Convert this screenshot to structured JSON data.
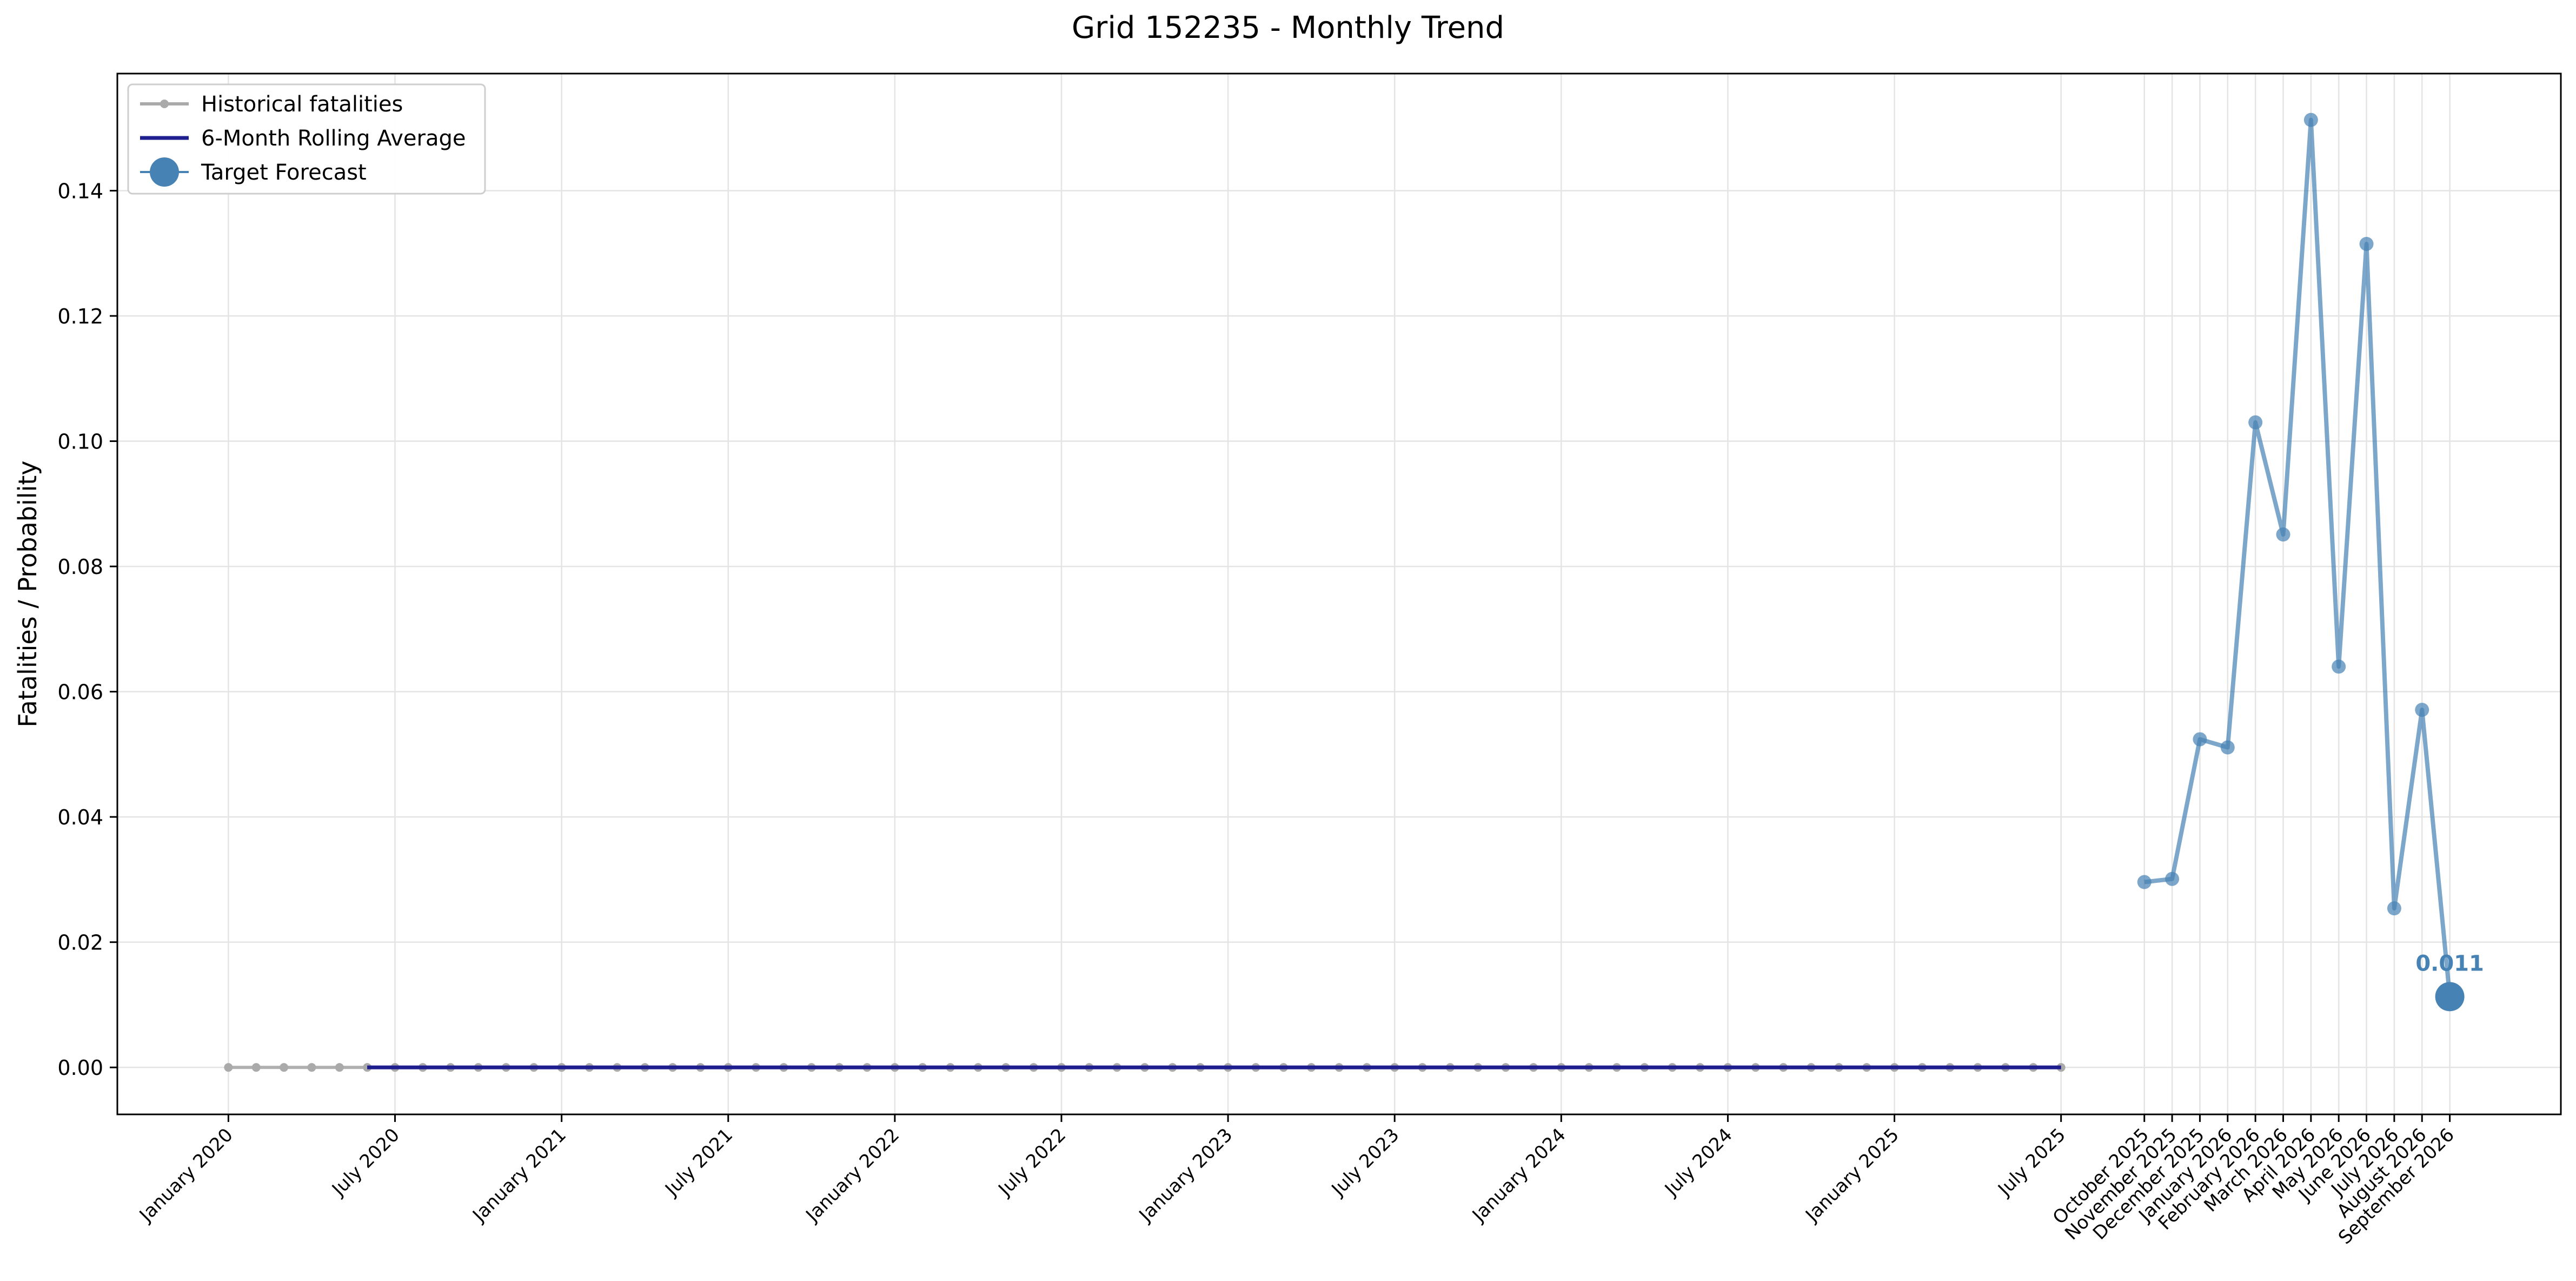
{
  "chart_data": {
    "type": "line",
    "title": "Grid 152235 - Monthly Trend",
    "xlabel": "",
    "ylabel": "Fatalities / Probability",
    "ylim": [
      -0.0075,
      0.1587
    ],
    "yticks": [
      0.0,
      0.02,
      0.04,
      0.06,
      0.08,
      0.1,
      0.12,
      0.14
    ],
    "ytick_labels": [
      "0.00",
      "0.02",
      "0.04",
      "0.06",
      "0.08",
      "0.10",
      "0.12",
      "0.14"
    ],
    "grid": true,
    "legend_position": "top-left",
    "xticks": [
      {
        "date": "2020-01",
        "label": "January 2020"
      },
      {
        "date": "2020-07",
        "label": "July 2020"
      },
      {
        "date": "2021-01",
        "label": "January 2021"
      },
      {
        "date": "2021-07",
        "label": "July 2021"
      },
      {
        "date": "2022-01",
        "label": "January 2022"
      },
      {
        "date": "2022-07",
        "label": "July 2022"
      },
      {
        "date": "2023-01",
        "label": "January 2023"
      },
      {
        "date": "2023-07",
        "label": "July 2023"
      },
      {
        "date": "2024-01",
        "label": "January 2024"
      },
      {
        "date": "2024-07",
        "label": "July 2024"
      },
      {
        "date": "2025-01",
        "label": "January 2025"
      },
      {
        "date": "2025-07",
        "label": "July 2025"
      },
      {
        "date": "2025-10",
        "label": "October 2025"
      },
      {
        "date": "2025-11",
        "label": "November 2025"
      },
      {
        "date": "2025-12",
        "label": "December 2025"
      },
      {
        "date": "2026-01",
        "label": "January 2026"
      },
      {
        "date": "2026-02",
        "label": "February 2026"
      },
      {
        "date": "2026-03",
        "label": "March 2026"
      },
      {
        "date": "2026-04",
        "label": "April 2026"
      },
      {
        "date": "2026-05",
        "label": "May 2026"
      },
      {
        "date": "2026-06",
        "label": "June 2026"
      },
      {
        "date": "2026-07",
        "label": "July 2026"
      },
      {
        "date": "2026-08",
        "label": "August 2026"
      },
      {
        "date": "2026-09",
        "label": "September 2026"
      }
    ],
    "series": [
      {
        "name": "Historical fatalities",
        "color": "#aaaaaa",
        "style": "line-with-small-markers",
        "start": "2020-01",
        "end": "2025-07",
        "constant_value": 0
      },
      {
        "name": "6-Month Rolling Average",
        "color": "#1f1f8f",
        "style": "line",
        "start": "2020-06",
        "end": "2025-07",
        "constant_value": 0
      },
      {
        "name": "",
        "color": "#4682b4",
        "style": "line-with-markers",
        "points": [
          {
            "date": "2025-10",
            "y": 0.0296
          },
          {
            "date": "2025-11",
            "y": 0.0301
          },
          {
            "date": "2025-12",
            "y": 0.0524
          },
          {
            "date": "2026-01",
            "y": 0.0511
          },
          {
            "date": "2026-02",
            "y": 0.103
          },
          {
            "date": "2026-03",
            "y": 0.0851
          },
          {
            "date": "2026-04",
            "y": 0.1513
          },
          {
            "date": "2026-05",
            "y": 0.064
          },
          {
            "date": "2026-06",
            "y": 0.1315
          },
          {
            "date": "2026-07",
            "y": 0.0254
          },
          {
            "date": "2026-08",
            "y": 0.0571
          },
          {
            "date": "2026-09",
            "y": 0.0113
          }
        ]
      },
      {
        "name": "Target Forecast",
        "color": "#4682b4",
        "style": "large-marker",
        "points": [
          {
            "date": "2026-09",
            "y": 0.0113
          }
        ]
      }
    ],
    "annotations": [
      {
        "date": "2026-09",
        "y": 0.0113,
        "text": "0.011",
        "color": "#4682b4"
      }
    ]
  }
}
